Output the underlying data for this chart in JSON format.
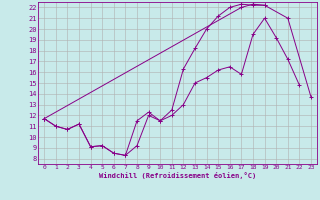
{
  "title": "",
  "xlabel": "Windchill (Refroidissement éolien,°C)",
  "ylabel": "",
  "xlim": [
    -0.5,
    23.5
  ],
  "ylim": [
    7.5,
    22.5
  ],
  "xticks": [
    0,
    1,
    2,
    3,
    4,
    5,
    6,
    7,
    8,
    9,
    10,
    11,
    12,
    13,
    14,
    15,
    16,
    17,
    18,
    19,
    20,
    21,
    22,
    23
  ],
  "yticks": [
    8,
    9,
    10,
    11,
    12,
    13,
    14,
    15,
    16,
    17,
    18,
    19,
    20,
    21,
    22
  ],
  "line_color": "#880088",
  "bg_color": "#c8eaea",
  "grid_color": "#b0b0b0",
  "line1_x": [
    0,
    1,
    2,
    3,
    4,
    5,
    6,
    7,
    8,
    9,
    10,
    11,
    12,
    13,
    14,
    15,
    16,
    17,
    18,
    19,
    20,
    21,
    22
  ],
  "line1_y": [
    11.7,
    11.0,
    10.7,
    11.2,
    9.1,
    9.2,
    8.5,
    8.3,
    9.2,
    12.0,
    11.5,
    12.0,
    13.0,
    15.0,
    15.5,
    16.2,
    16.5,
    15.8,
    19.5,
    21.0,
    19.2,
    17.2,
    14.8
  ],
  "line2_x": [
    0,
    1,
    2,
    3,
    4,
    5,
    6,
    7,
    8,
    9,
    10,
    11,
    12,
    13,
    14,
    15,
    16,
    17,
    18,
    19
  ],
  "line2_y": [
    11.7,
    11.0,
    10.7,
    11.2,
    9.1,
    9.2,
    8.5,
    8.3,
    11.5,
    12.3,
    11.5,
    12.5,
    16.3,
    18.2,
    20.0,
    21.2,
    22.0,
    22.3,
    22.2,
    22.2
  ],
  "line3_x": [
    0,
    17,
    18,
    19,
    21,
    23
  ],
  "line3_y": [
    11.7,
    22.0,
    22.3,
    22.2,
    21.0,
    13.7
  ]
}
